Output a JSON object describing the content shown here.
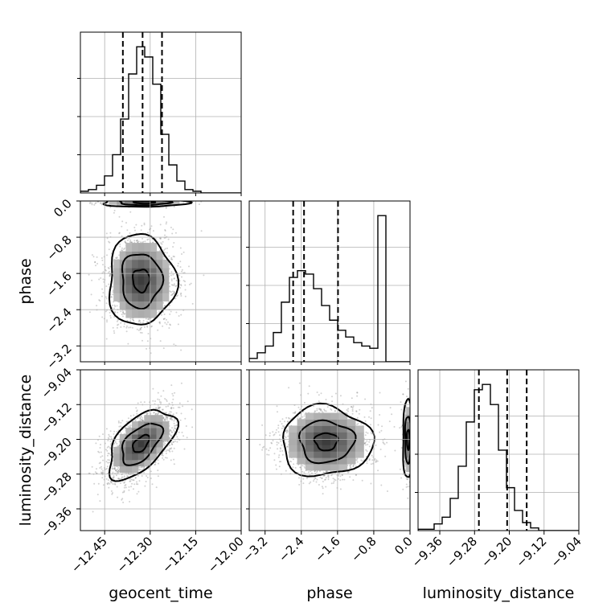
{
  "chart_data": {
    "type": "corner",
    "parameters": [
      "geocent_time",
      "phase",
      "luminosity_distance"
    ],
    "ranges": {
      "geocent_time": [
        -12.53,
        -12.0
      ],
      "phase": [
        -3.55,
        0.0
      ],
      "luminosity_distance": [
        -9.41,
        -9.04
      ]
    },
    "ticks": {
      "geocent_time": [
        -12.45,
        -12.3,
        -12.15,
        -12.0
      ],
      "phase": [
        -3.2,
        -2.4,
        -1.6,
        -0.8,
        0.0
      ],
      "luminosity_distance": [
        -9.36,
        -9.28,
        -9.2,
        -9.12,
        -9.04
      ]
    },
    "tick_labels": {
      "geocent_time": [
        "−12.45",
        "−12.30",
        "−12.15",
        "−12.00"
      ],
      "phase": [
        "−3.2",
        "−2.4",
        "−1.6",
        "−0.8",
        "0.0"
      ],
      "luminosity_distance": [
        "−9.36",
        "−9.28",
        "−9.20",
        "−9.12",
        "−9.04"
      ]
    },
    "axis_labels": {
      "geocent_time": "geocent_time",
      "phase": "phase",
      "luminosity_distance": "luminosity_distance"
    },
    "histograms": {
      "geocent_time": {
        "bin_start": -12.53,
        "bin_width": 0.0265,
        "counts": [
          2,
          4,
          9,
          20,
          45,
          87,
          140,
          172,
          160,
          128,
          69,
          33,
          14,
          4,
          2,
          0,
          0,
          0,
          0,
          0
        ],
        "quantiles": [
          -12.39,
          -12.325,
          -12.261
        ]
      },
      "phase": {
        "bin_start": -3.55,
        "bin_width": 0.1775,
        "counts": [
          3,
          8,
          14,
          26,
          53,
          75,
          81,
          78,
          65,
          50,
          37,
          28,
          22,
          17,
          14,
          12,
          130,
          0,
          0,
          0
        ],
        "quantiles": [
          -2.58,
          -2.34,
          -1.59
        ]
      },
      "luminosity_distance": {
        "bin_start": -9.41,
        "bin_width": 0.0185,
        "counts": [
          1,
          1,
          5,
          10,
          24,
          48,
          81,
          105,
          109,
          94,
          60,
          32,
          15,
          6,
          2,
          0,
          0,
          0,
          0,
          0
        ],
        "quantiles": [
          -9.27,
          -9.205,
          -9.16
        ]
      }
    },
    "pairs": [
      {
        "x": "geocent_time",
        "y": "phase",
        "mode1": {
          "mx": -12.33,
          "my": -1.75,
          "sx": 0.055,
          "sy": 0.5,
          "w": 0.82
        },
        "mode2": {
          "mx": -12.32,
          "my": -0.03,
          "sx": 0.07,
          "sy": 0.05,
          "w": 0.18
        },
        "contour_levels": [
          0.5,
          1.2,
          2.0
        ]
      },
      {
        "x": "geocent_time",
        "y": "luminosity_distance",
        "mode1": {
          "mx": -12.33,
          "my": -9.21,
          "sx": 0.055,
          "sy": 0.04,
          "rho": 0.55,
          "w": 1.0
        },
        "contour_levels": [
          0.5,
          1.2,
          2.0
        ]
      },
      {
        "x": "phase",
        "y": "luminosity_distance",
        "mode1": {
          "mx": -1.85,
          "my": -9.205,
          "sx": 0.5,
          "sy": 0.04,
          "w": 0.82
        },
        "mode2": {
          "mx": -0.04,
          "my": -9.2,
          "sx": 0.06,
          "sy": 0.045,
          "w": 0.18
        },
        "contour_levels": [
          0.5,
          1.2,
          2.0
        ]
      }
    ],
    "grid": true
  }
}
